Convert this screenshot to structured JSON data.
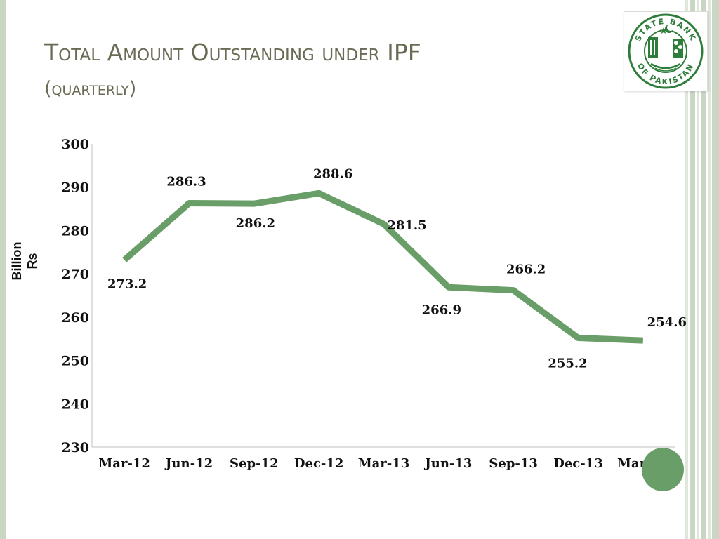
{
  "title": {
    "line1": "Total Amount Outstanding under IPF",
    "line2": "(quarterly)"
  },
  "logo": {
    "text_top": "STATE BANK",
    "text_bottom": "OF PAKISTAN",
    "color": "#2e7d3a"
  },
  "colors": {
    "line": "#6a9e68",
    "title": "#6b6b55",
    "accent_bars": "#c9d6c4"
  },
  "chart_data": {
    "type": "line",
    "title": "",
    "xlabel": "",
    "ylabel_lines": [
      "Billion",
      "Rs"
    ],
    "ylim": [
      230,
      300
    ],
    "yticks": [
      230,
      240,
      250,
      260,
      270,
      280,
      290,
      300
    ],
    "grid": false,
    "categories": [
      "Mar-12",
      "Jun-12",
      "Sep-12",
      "Dec-12",
      "Mar-13",
      "Jun-13",
      "Sep-13",
      "Dec-13",
      "Mar-14"
    ],
    "series": [
      {
        "values": [
          273.2,
          286.3,
          286.2,
          288.6,
          281.5,
          266.9,
          266.2,
          255.2,
          254.6
        ],
        "labels": [
          "273.2",
          "286.3",
          "286.2",
          "288.6",
          "281.5",
          "266.9",
          "266.2",
          "255.2",
          "254.6"
        ]
      }
    ]
  }
}
